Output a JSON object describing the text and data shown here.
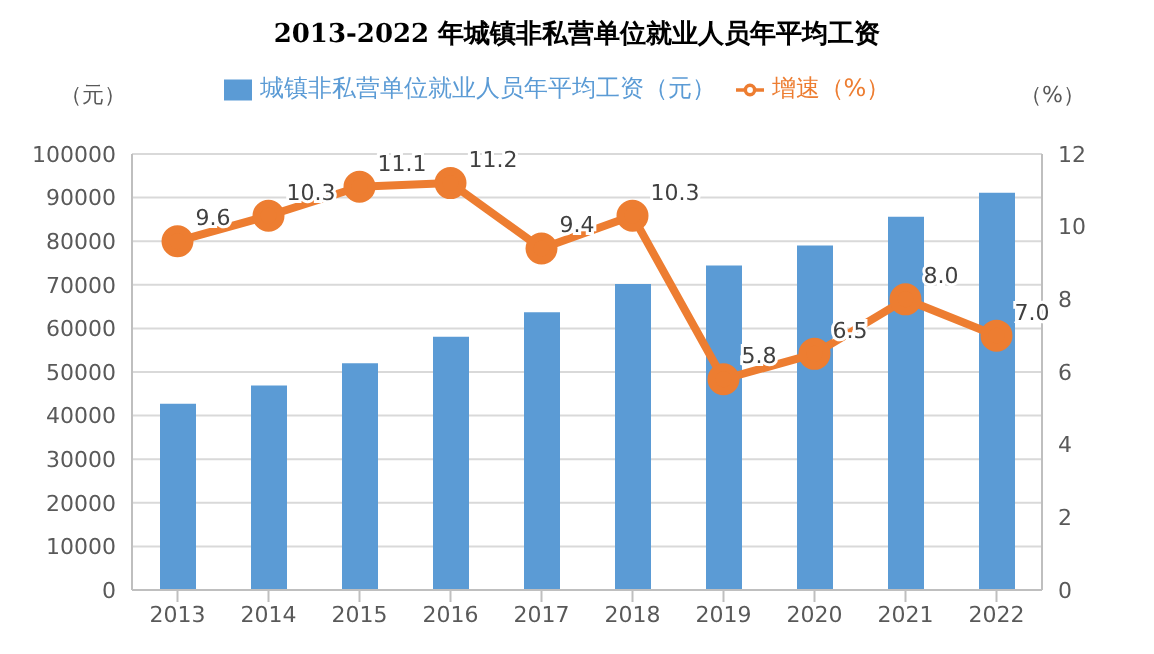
{
  "chart_data": {
    "type": "bar",
    "title": "2013-2022 年城镇非私营单位就业人员年平均工资",
    "ylabel": "（元）",
    "y2label": "（%）",
    "categories": [
      "2013",
      "2014",
      "2015",
      "2016",
      "2017",
      "2018",
      "2019",
      "2020",
      "2021",
      "2022"
    ],
    "series": [
      {
        "name": "城镇非私营单位就业人员年平均工资（元）",
        "color": "#5b9bd5",
        "values": [
          42700,
          46900,
          52000,
          58100,
          63700,
          70200,
          74400,
          79000,
          85600,
          91100
        ]
      },
      {
        "name": "增速（%）",
        "type": "line",
        "axis": "y2",
        "color": "#ed7d31",
        "marker": "circle",
        "values": [
          9.6,
          10.3,
          11.1,
          11.2,
          9.4,
          10.3,
          5.8,
          6.5,
          8.0,
          7.0
        ],
        "value_labels": [
          "9.6",
          "10.3",
          "11.1",
          "11.2",
          "9.4",
          "10.3",
          "5.8",
          "6.5",
          "8.0",
          "7.0"
        ]
      }
    ],
    "ylim": [
      0,
      100000
    ],
    "yticks": [
      0,
      10000,
      20000,
      30000,
      40000,
      50000,
      60000,
      70000,
      80000,
      90000,
      100000
    ],
    "y2lim": [
      0,
      12
    ],
    "y2ticks": [
      0,
      2,
      4,
      6,
      8,
      10,
      12
    ],
    "grid": "y",
    "legend": "top"
  }
}
